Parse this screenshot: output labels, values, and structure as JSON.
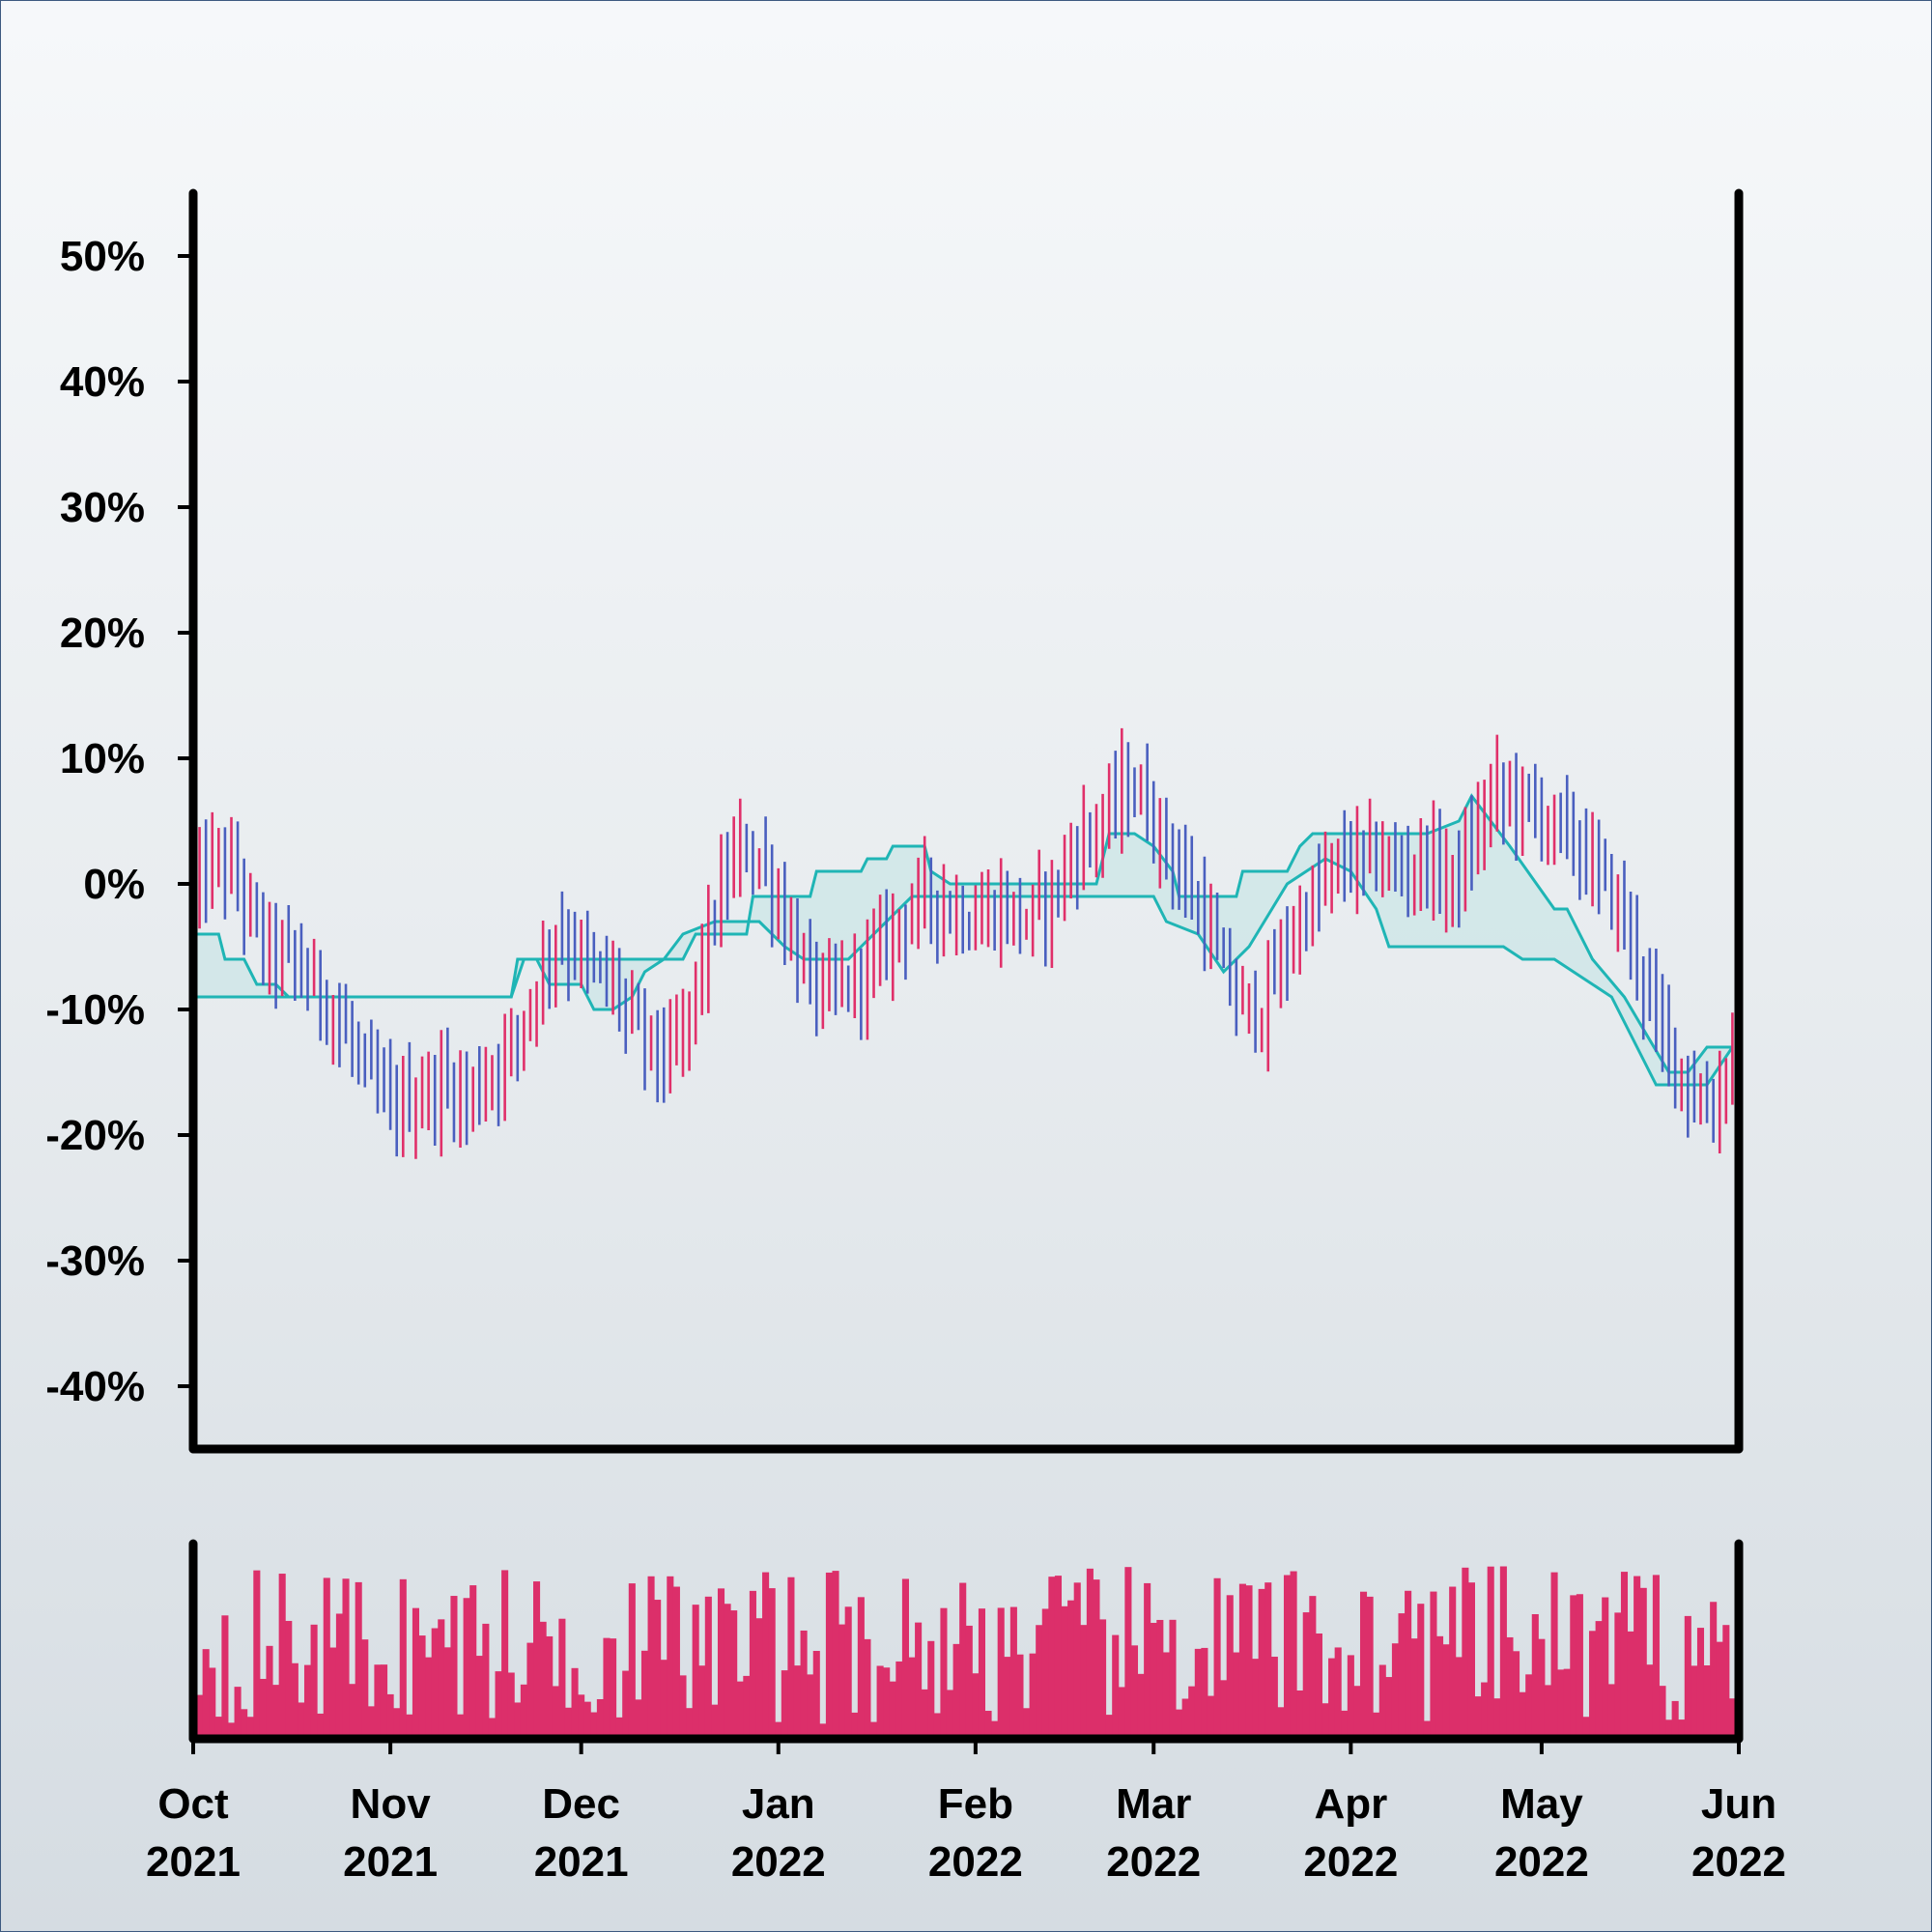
{
  "chart_data": [
    {
      "type": "ohlc",
      "title": "",
      "xlabel": "",
      "ylabel": "",
      "ylim": [
        -45,
        55
      ],
      "yticks": [
        "-40%",
        "-30%",
        "-20%",
        "-10%",
        "0%",
        "10%",
        "20%",
        "30%",
        "40%",
        "50%"
      ],
      "ytick_values": [
        -40,
        -30,
        -20,
        -10,
        0,
        10,
        20,
        30,
        40,
        50
      ],
      "x_range": [
        "2021-10-01",
        "2022-06-01"
      ],
      "xticks": [
        {
          "date": "2021-10-01",
          "month": "Oct",
          "year": "2021"
        },
        {
          "date": "2021-11-01",
          "month": "Nov",
          "year": "2021"
        },
        {
          "date": "2021-12-01",
          "month": "Dec",
          "year": "2021"
        },
        {
          "date": "2022-01-01",
          "month": "Jan",
          "year": "2022"
        },
        {
          "date": "2022-02-01",
          "month": "Feb",
          "year": "2022"
        },
        {
          "date": "2022-03-01",
          "month": "Mar",
          "year": "2022"
        },
        {
          "date": "2022-04-01",
          "month": "Apr",
          "year": "2022"
        },
        {
          "date": "2022-05-01",
          "month": "May",
          "year": "2022"
        },
        {
          "date": "2022-06-01",
          "month": "Jun",
          "year": "2022"
        }
      ],
      "up_color": "#e0306a",
      "down_color": "#4a5fbf",
      "band_color": "#1fb5b5",
      "band_fill": "#cfe6e8",
      "anchor_close": [
        [
          "2021-10-01",
          -1
        ],
        [
          "2021-10-03",
          1
        ],
        [
          "2021-10-05",
          2
        ],
        [
          "2021-10-08",
          0
        ],
        [
          "2021-10-12",
          -5
        ],
        [
          "2021-10-16",
          -6
        ],
        [
          "2021-10-20",
          -8
        ],
        [
          "2021-10-24",
          -11
        ],
        [
          "2021-10-28",
          -15
        ],
        [
          "2021-11-01",
          -18
        ],
        [
          "2021-11-05",
          -17
        ],
        [
          "2021-11-09",
          -16
        ],
        [
          "2021-11-13",
          -17
        ],
        [
          "2021-11-17",
          -15
        ],
        [
          "2021-11-21",
          -12
        ],
        [
          "2021-11-24",
          -8
        ],
        [
          "2021-11-27",
          -4
        ],
        [
          "2021-11-30",
          -5
        ],
        [
          "2021-12-03",
          -7
        ],
        [
          "2021-12-06",
          -8
        ],
        [
          "2021-12-09",
          -11
        ],
        [
          "2021-12-12",
          -13
        ],
        [
          "2021-12-15",
          -14
        ],
        [
          "2021-12-17",
          -12
        ],
        [
          "2021-12-19",
          -8
        ],
        [
          "2021-12-21",
          -4
        ],
        [
          "2021-12-24",
          1
        ],
        [
          "2021-12-27",
          3
        ],
        [
          "2021-12-30",
          1
        ],
        [
          "2022-01-02",
          -3
        ],
        [
          "2022-01-05",
          -7
        ],
        [
          "2022-01-08",
          -9
        ],
        [
          "2022-01-12",
          -8
        ],
        [
          "2022-01-16",
          -6
        ],
        [
          "2022-01-20",
          -3
        ],
        [
          "2022-01-24",
          -1
        ],
        [
          "2022-01-28",
          -2
        ],
        [
          "2022-02-01",
          -3
        ],
        [
          "2022-02-05",
          -2
        ],
        [
          "2022-02-09",
          -3
        ],
        [
          "2022-02-13",
          -1
        ],
        [
          "2022-02-17",
          3
        ],
        [
          "2022-02-21",
          5
        ],
        [
          "2022-02-25",
          8
        ],
        [
          "2022-02-28",
          6
        ],
        [
          "2022-03-03",
          3
        ],
        [
          "2022-03-06",
          0
        ],
        [
          "2022-03-09",
          -3
        ],
        [
          "2022-03-12",
          -7
        ],
        [
          "2022-03-15",
          -10
        ],
        [
          "2022-03-18",
          -10
        ],
        [
          "2022-03-21",
          -6
        ],
        [
          "2022-03-25",
          -2
        ],
        [
          "2022-03-29",
          1
        ],
        [
          "2022-04-01",
          2
        ],
        [
          "2022-04-05",
          2
        ],
        [
          "2022-04-09",
          1
        ],
        [
          "2022-04-13",
          2
        ],
        [
          "2022-04-17",
          0
        ],
        [
          "2022-04-20",
          3
        ],
        [
          "2022-04-23",
          7
        ],
        [
          "2022-04-26",
          7
        ],
        [
          "2022-04-29",
          6
        ],
        [
          "2022-05-02",
          5
        ],
        [
          "2022-05-05",
          4
        ],
        [
          "2022-05-08",
          2
        ],
        [
          "2022-05-11",
          0
        ],
        [
          "2022-05-14",
          -3
        ],
        [
          "2022-05-16",
          -6
        ],
        [
          "2022-05-19",
          -11
        ],
        [
          "2022-05-22",
          -14
        ],
        [
          "2022-05-25",
          -17
        ],
        [
          "2022-05-28",
          -18
        ],
        [
          "2022-05-31",
          -13
        ]
      ],
      "band_upper": [
        [
          "2021-10-01",
          -4
        ],
        [
          "2021-10-05",
          -4
        ],
        [
          "2021-10-06",
          -6
        ],
        [
          "2021-10-09",
          -6
        ],
        [
          "2021-10-11",
          -8
        ],
        [
          "2021-10-14",
          -8
        ],
        [
          "2021-10-16",
          -9
        ],
        [
          "2021-11-20",
          -9
        ],
        [
          "2021-11-21",
          -6
        ],
        [
          "2021-12-17",
          -6
        ],
        [
          "2021-12-19",
          -4
        ],
        [
          "2021-12-27",
          -4
        ],
        [
          "2021-12-28",
          -1
        ],
        [
          "2022-01-06",
          -1
        ],
        [
          "2022-01-07",
          1
        ],
        [
          "2022-01-14",
          1
        ],
        [
          "2022-01-15",
          2
        ],
        [
          "2022-01-18",
          2
        ],
        [
          "2022-01-19",
          3
        ],
        [
          "2022-01-24",
          3
        ],
        [
          "2022-01-25",
          1
        ],
        [
          "2022-01-28",
          0
        ],
        [
          "2022-02-20",
          0
        ],
        [
          "2022-02-22",
          4
        ],
        [
          "2022-02-26",
          4
        ],
        [
          "2022-03-01",
          3
        ],
        [
          "2022-03-04",
          1
        ],
        [
          "2022-03-05",
          -1
        ],
        [
          "2022-03-14",
          -1
        ],
        [
          "2022-03-15",
          1
        ],
        [
          "2022-03-22",
          1
        ],
        [
          "2022-03-24",
          3
        ],
        [
          "2022-03-26",
          4
        ],
        [
          "2022-04-01",
          4
        ],
        [
          "2022-04-13",
          4
        ],
        [
          "2022-04-18",
          5
        ],
        [
          "2022-04-20",
          7
        ],
        [
          "2022-04-23",
          5
        ],
        [
          "2022-04-26",
          3
        ],
        [
          "2022-05-03",
          -2
        ],
        [
          "2022-05-05",
          -2
        ],
        [
          "2022-05-09",
          -6
        ],
        [
          "2022-05-14",
          -9
        ],
        [
          "2022-05-21",
          -15
        ],
        [
          "2022-05-24",
          -15
        ],
        [
          "2022-05-27",
          -13
        ],
        [
          "2022-05-31",
          -13
        ]
      ],
      "band_lower": [
        [
          "2021-10-01",
          -9
        ],
        [
          "2021-11-20",
          -9
        ],
        [
          "2021-11-22",
          -6
        ],
        [
          "2021-11-24",
          -6
        ],
        [
          "2021-11-26",
          -8
        ],
        [
          "2021-12-01",
          -8
        ],
        [
          "2021-12-03",
          -10
        ],
        [
          "2021-12-06",
          -10
        ],
        [
          "2021-12-09",
          -9
        ],
        [
          "2021-12-11",
          -7
        ],
        [
          "2021-12-14",
          -6
        ],
        [
          "2021-12-17",
          -4
        ],
        [
          "2021-12-22",
          -3
        ],
        [
          "2021-12-29",
          -3
        ],
        [
          "2022-01-02",
          -5
        ],
        [
          "2022-01-05",
          -6
        ],
        [
          "2022-01-12",
          -6
        ],
        [
          "2022-01-18",
          -3
        ],
        [
          "2022-01-22",
          -1
        ],
        [
          "2022-01-28",
          -1
        ],
        [
          "2022-02-20",
          -1
        ],
        [
          "2022-03-01",
          -1
        ],
        [
          "2022-03-03",
          -3
        ],
        [
          "2022-03-08",
          -4
        ],
        [
          "2022-03-12",
          -7
        ],
        [
          "2022-03-16",
          -5
        ],
        [
          "2022-03-22",
          0
        ],
        [
          "2022-03-28",
          2
        ],
        [
          "2022-04-01",
          1
        ],
        [
          "2022-04-05",
          -2
        ],
        [
          "2022-04-07",
          -5
        ],
        [
          "2022-04-25",
          -5
        ],
        [
          "2022-04-28",
          -6
        ],
        [
          "2022-05-03",
          -6
        ],
        [
          "2022-05-06",
          -7
        ],
        [
          "2022-05-12",
          -9
        ],
        [
          "2022-05-17",
          -14
        ],
        [
          "2022-05-19",
          -16
        ],
        [
          "2022-05-27",
          -16
        ],
        [
          "2022-05-31",
          -13
        ]
      ]
    },
    {
      "type": "bar",
      "title": "",
      "xlabel": "",
      "ylabel": "",
      "bar_color": "#dc2f6a",
      "x_range": [
        "2021-10-01",
        "2022-06-01"
      ],
      "ylim": [
        0,
        1
      ]
    }
  ]
}
